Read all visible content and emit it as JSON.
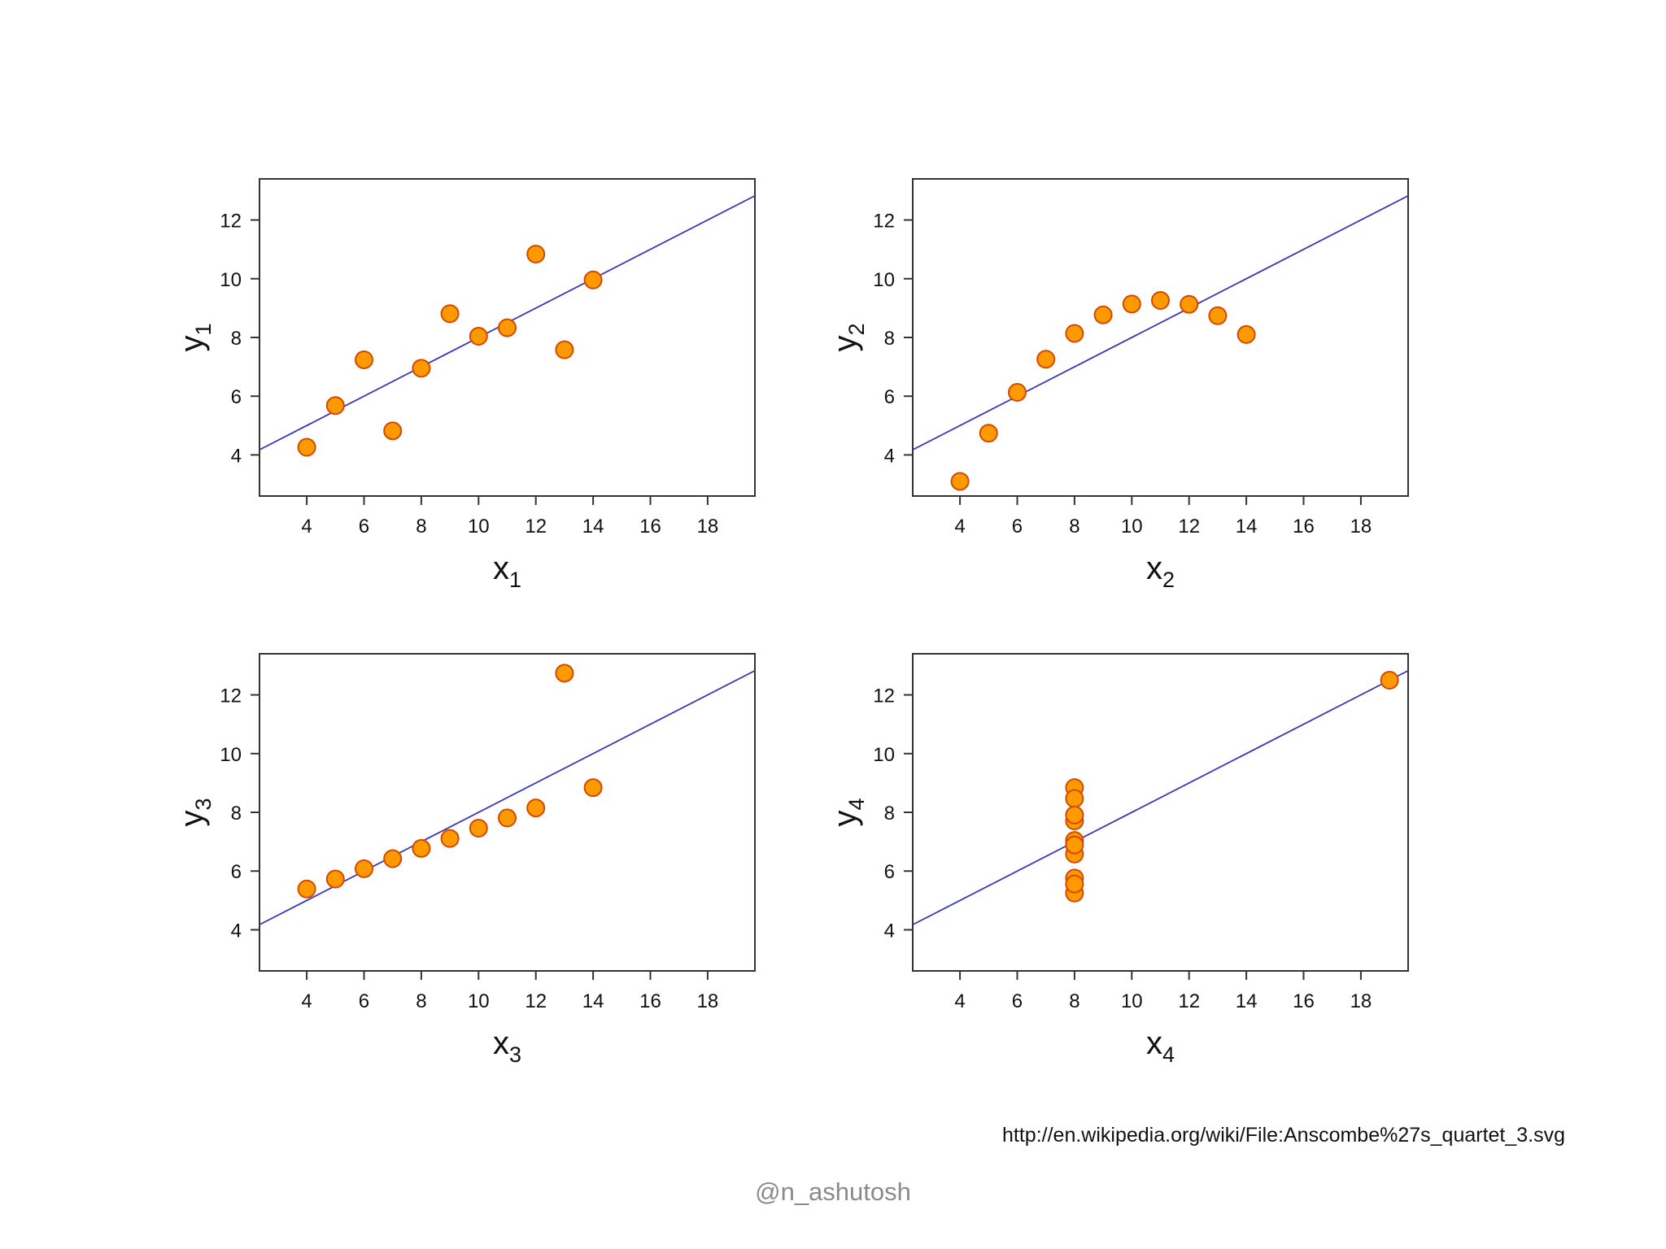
{
  "chart_data": [
    {
      "type": "scatter",
      "xlabel": "x1",
      "ylabel": "y1",
      "xlabel_var": "x",
      "xlabel_sub": "1",
      "ylabel_var": "y",
      "ylabel_sub": "1",
      "xticks": [
        4,
        6,
        8,
        10,
        12,
        14,
        16,
        18
      ],
      "yticks": [
        4,
        6,
        8,
        10,
        12
      ],
      "xlim": [
        2.35,
        19.65
      ],
      "ylim": [
        2.6,
        13.4
      ],
      "grid": false,
      "x": [
        10,
        8,
        13,
        9,
        11,
        14,
        6,
        4,
        12,
        7,
        5
      ],
      "y": [
        8.04,
        6.95,
        7.58,
        8.81,
        8.33,
        9.96,
        7.24,
        4.26,
        10.84,
        4.82,
        5.68
      ],
      "fit_line": {
        "intercept": 3.0,
        "slope": 0.5
      },
      "marker_color": "#ff9900",
      "marker_edge_color": "#d24a00",
      "line_color": "#3a37b8"
    },
    {
      "type": "scatter",
      "xlabel": "x2",
      "ylabel": "y2",
      "xlabel_var": "x",
      "xlabel_sub": "2",
      "ylabel_var": "y",
      "ylabel_sub": "2",
      "xticks": [
        4,
        6,
        8,
        10,
        12,
        14,
        16,
        18
      ],
      "yticks": [
        4,
        6,
        8,
        10,
        12
      ],
      "xlim": [
        2.35,
        19.65
      ],
      "ylim": [
        2.6,
        13.4
      ],
      "grid": false,
      "x": [
        10,
        8,
        13,
        9,
        11,
        14,
        6,
        4,
        12,
        7,
        5
      ],
      "y": [
        9.14,
        8.14,
        8.74,
        8.77,
        9.26,
        8.1,
        6.13,
        3.1,
        9.13,
        7.26,
        4.74
      ],
      "fit_line": {
        "intercept": 3.0,
        "slope": 0.5
      },
      "marker_color": "#ff9900",
      "marker_edge_color": "#d24a00",
      "line_color": "#3a37b8"
    },
    {
      "type": "scatter",
      "xlabel": "x3",
      "ylabel": "y3",
      "xlabel_var": "x",
      "xlabel_sub": "3",
      "ylabel_var": "y",
      "ylabel_sub": "3",
      "xticks": [
        4,
        6,
        8,
        10,
        12,
        14,
        16,
        18
      ],
      "yticks": [
        4,
        6,
        8,
        10,
        12
      ],
      "xlim": [
        2.35,
        19.65
      ],
      "ylim": [
        2.6,
        13.4
      ],
      "grid": false,
      "x": [
        10,
        8,
        13,
        9,
        11,
        14,
        6,
        4,
        12,
        7,
        5
      ],
      "y": [
        7.46,
        6.77,
        12.74,
        7.11,
        7.81,
        8.84,
        6.08,
        5.39,
        8.15,
        6.42,
        5.73
      ],
      "fit_line": {
        "intercept": 3.0,
        "slope": 0.5
      },
      "marker_color": "#ff9900",
      "marker_edge_color": "#d24a00",
      "line_color": "#3a37b8"
    },
    {
      "type": "scatter",
      "xlabel": "x4",
      "ylabel": "y4",
      "xlabel_var": "x",
      "xlabel_sub": "4",
      "ylabel_var": "y",
      "ylabel_sub": "4",
      "xticks": [
        4,
        6,
        8,
        10,
        12,
        14,
        16,
        18
      ],
      "yticks": [
        4,
        6,
        8,
        10,
        12
      ],
      "xlim": [
        2.35,
        19.65
      ],
      "ylim": [
        2.6,
        13.4
      ],
      "grid": false,
      "x": [
        8,
        8,
        8,
        8,
        8,
        8,
        8,
        19,
        8,
        8,
        8
      ],
      "y": [
        6.58,
        5.76,
        7.71,
        8.84,
        8.47,
        7.04,
        5.25,
        12.5,
        5.56,
        7.91,
        6.89
      ],
      "fit_line": {
        "intercept": 3.0,
        "slope": 0.5
      },
      "marker_color": "#ff9900",
      "marker_edge_color": "#d24a00",
      "line_color": "#3a37b8"
    }
  ],
  "source": {
    "url": "http://en.wikipedia.org/wiki/File:Anscombe%27s_quartet_3.svg"
  },
  "watermark": {
    "text": "@n_ashutosh"
  }
}
